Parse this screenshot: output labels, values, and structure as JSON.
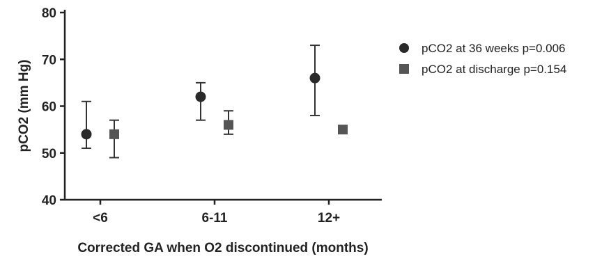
{
  "chart_data": {
    "type": "scatter",
    "title": "",
    "xlabel": "Corrected GA when O2 discontinued (months)",
    "ylabel": "pCO2 (mm Hg)",
    "ylim": [
      40,
      80
    ],
    "yticks": [
      40,
      50,
      60,
      70,
      80
    ],
    "categories": [
      "<6",
      "6-11",
      "12+"
    ],
    "grid": false,
    "legend_position": "right",
    "series": [
      {
        "name": "pCO2 at 36 weeks p=0.006",
        "marker": "circle",
        "color": "#2a2a2a",
        "values": [
          54,
          62,
          66
        ],
        "error_low": [
          51,
          57,
          58
        ],
        "error_high": [
          61,
          65,
          73
        ]
      },
      {
        "name": "pCO2 at discharge p=0.154",
        "marker": "square",
        "color": "#555555",
        "values": [
          54,
          56,
          55
        ],
        "error_low": [
          49,
          54,
          null
        ],
        "error_high": [
          57,
          59,
          null
        ]
      }
    ]
  }
}
